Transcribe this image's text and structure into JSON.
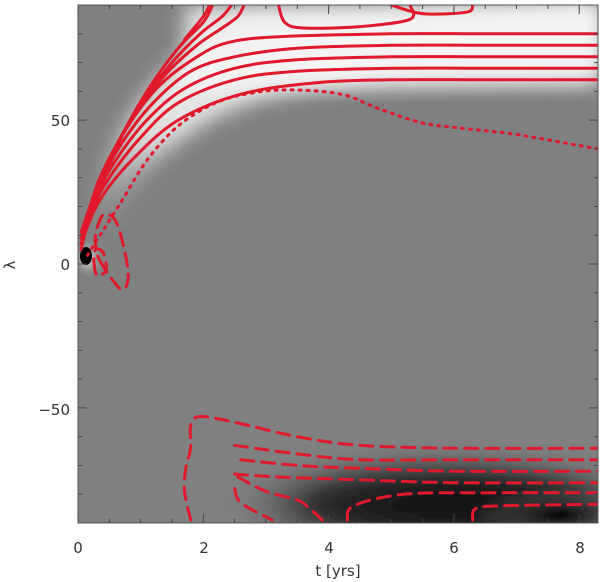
{
  "chart_data": {
    "type": "heatmap",
    "title": "",
    "xlabel": "t [yrs]",
    "ylabel": "λ",
    "xlim": [
      0,
      8.3
    ],
    "ylim": [
      -90,
      90
    ],
    "x_ticks": [
      0,
      2,
      4,
      6,
      8
    ],
    "y_ticks": [
      -50,
      0,
      50
    ],
    "x_tick_labels": [
      "0",
      "2",
      "4",
      "6",
      "8"
    ],
    "y_tick_labels": [
      "−50",
      "0",
      "50"
    ],
    "grid": false,
    "legend": "none",
    "colormap": "grayscale",
    "contour_color": "#e0192b",
    "contours": {
      "positive_solid": [
        [
          [
            0.05,
            5
          ],
          [
            0.15,
            13
          ],
          [
            0.4,
            24
          ],
          [
            0.9,
            37
          ],
          [
            1.6,
            50
          ],
          [
            2.6,
            59
          ],
          [
            3.8,
            63
          ],
          [
            5,
            64
          ],
          [
            6.5,
            64
          ],
          [
            8.3,
            64
          ]
        ],
        [
          [
            0.05,
            7
          ],
          [
            0.2,
            18
          ],
          [
            0.5,
            30
          ],
          [
            1.0,
            44
          ],
          [
            1.6,
            56
          ],
          [
            2.5,
            64
          ],
          [
            3.5,
            67
          ],
          [
            5,
            68
          ],
          [
            6.5,
            68
          ],
          [
            8.3,
            68
          ]
        ],
        [
          [
            0.05,
            9
          ],
          [
            0.25,
            22
          ],
          [
            0.6,
            36
          ],
          [
            1.1,
            50
          ],
          [
            1.7,
            61
          ],
          [
            2.5,
            68
          ],
          [
            3.5,
            71
          ],
          [
            5,
            72
          ],
          [
            6.5,
            72
          ],
          [
            8.3,
            72
          ]
        ],
        [
          [
            0.05,
            11
          ],
          [
            0.3,
            26
          ],
          [
            0.7,
            42
          ],
          [
            1.2,
            56
          ],
          [
            1.8,
            67
          ],
          [
            2.5,
            72
          ],
          [
            3.5,
            75
          ],
          [
            5,
            76
          ],
          [
            6.5,
            76
          ],
          [
            8.3,
            76
          ]
        ],
        [
          [
            0.1,
            13
          ],
          [
            0.35,
            30
          ],
          [
            0.8,
            48
          ],
          [
            1.3,
            62
          ],
          [
            1.9,
            72
          ],
          [
            2.4,
            77
          ],
          [
            3.2,
            79
          ],
          [
            5,
            80
          ],
          [
            6.5,
            80
          ],
          [
            8.3,
            80
          ]
        ],
        [
          [
            0.15,
            15
          ],
          [
            0.45,
            34
          ],
          [
            0.9,
            52
          ],
          [
            1.4,
            66
          ],
          [
            1.9,
            76
          ],
          [
            2.3,
            82
          ],
          [
            2.55,
            86
          ],
          [
            2.65,
            90
          ]
        ],
        [
          [
            0.2,
            17
          ],
          [
            0.55,
            38
          ],
          [
            1.0,
            56
          ],
          [
            1.5,
            70
          ],
          [
            1.95,
            80
          ],
          [
            2.3,
            86
          ],
          [
            2.45,
            90
          ]
        ],
        [
          [
            0.25,
            19
          ],
          [
            0.65,
            42
          ],
          [
            1.1,
            60
          ],
          [
            1.6,
            75
          ],
          [
            2.0,
            84
          ],
          [
            2.15,
            90
          ]
        ],
        [
          [
            1.7,
            78
          ],
          [
            2.0,
            86
          ],
          [
            2.1,
            90
          ]
        ]
      ],
      "positive_closed": [
        [
          [
            3.2,
            90
          ],
          [
            3.3,
            84
          ],
          [
            3.6,
            82
          ],
          [
            4.5,
            82.5
          ],
          [
            5.3,
            85
          ],
          [
            5.3,
            90
          ]
        ],
        [
          [
            5.0,
            90
          ],
          [
            5.5,
            87
          ],
          [
            6.2,
            87.5
          ],
          [
            6.3,
            90
          ]
        ]
      ],
      "zero_dotted": [
        [
          [
            0.15,
            3
          ],
          [
            0.35,
            10
          ],
          [
            0.7,
            22
          ],
          [
            1.1,
            36
          ],
          [
            1.6,
            48
          ],
          [
            2.2,
            56
          ],
          [
            2.8,
            59.5
          ],
          [
            3.4,
            60.5
          ],
          [
            4.2,
            59
          ],
          [
            4.8,
            54
          ],
          [
            5.5,
            49
          ],
          [
            6.2,
            47
          ],
          [
            7,
            45
          ],
          [
            8.3,
            40
          ]
        ]
      ],
      "negative_dashed": [
        [
          [
            0.35,
            1
          ],
          [
            0.5,
            -4
          ],
          [
            0.7,
            -9
          ],
          [
            0.8,
            -5
          ],
          [
            0.75,
            4
          ],
          [
            0.6,
            15
          ],
          [
            0.4,
            17
          ],
          [
            0.28,
            10
          ],
          [
            0.3,
            4
          ],
          [
            0.35,
            1
          ]
        ],
        [
          [
            0.25,
            1
          ],
          [
            0.3,
            -4
          ],
          [
            0.45,
            -2
          ],
          [
            0.4,
            4
          ],
          [
            0.28,
            5
          ],
          [
            0.25,
            1
          ]
        ],
        [
          [
            1.8,
            -89
          ],
          [
            1.7,
            -79
          ],
          [
            1.72,
            -71
          ],
          [
            1.78,
            -66
          ],
          [
            1.8,
            -63
          ],
          [
            1.8,
            -56
          ],
          [
            1.95,
            -53
          ],
          [
            2.5,
            -55
          ],
          [
            3.5,
            -60
          ],
          [
            4.5,
            -63
          ],
          [
            6,
            -64
          ],
          [
            8.3,
            -64
          ]
        ],
        [
          [
            2.5,
            -63
          ],
          [
            3.5,
            -66
          ],
          [
            4.5,
            -68
          ],
          [
            6,
            -68
          ],
          [
            8.3,
            -68
          ]
        ],
        [
          [
            2.6,
            -68
          ],
          [
            3.5,
            -70
          ],
          [
            4.5,
            -71
          ],
          [
            6,
            -72
          ],
          [
            8.3,
            -72
          ]
        ],
        [
          [
            2.5,
            -73
          ],
          [
            3.2,
            -74
          ],
          [
            4.5,
            -75
          ],
          [
            6,
            -76
          ],
          [
            8.3,
            -76
          ]
        ],
        [
          [
            2.5,
            -78
          ],
          [
            2.6,
            -83
          ],
          [
            3.1,
            -89
          ]
        ],
        [
          [
            2.55,
            -74
          ],
          [
            3.0,
            -79
          ],
          [
            3.5,
            -82
          ],
          [
            3.7,
            -85
          ],
          [
            3.9,
            -89
          ]
        ],
        [
          [
            4.3,
            -89
          ],
          [
            4.4,
            -84
          ],
          [
            5.2,
            -80
          ],
          [
            6.5,
            -79.5
          ],
          [
            8.3,
            -79.5
          ]
        ],
        [
          [
            6.3,
            -89
          ],
          [
            6.35,
            -85
          ],
          [
            6.8,
            -84
          ],
          [
            8.3,
            -83.5
          ]
        ]
      ]
    }
  }
}
